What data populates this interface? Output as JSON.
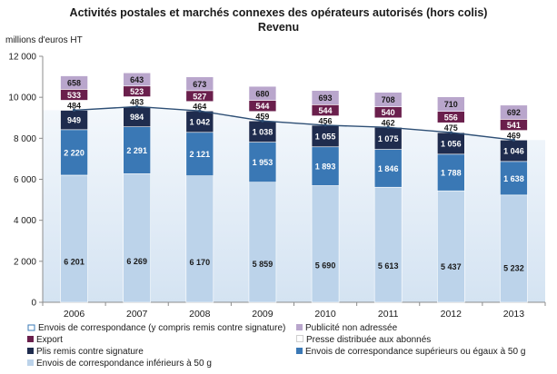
{
  "chart_data": {
    "type": "bar",
    "title": "Activités postales et marchés connexes des opérateurs autorisés (hors colis)",
    "subtitle": "Revenu",
    "ylabel": "millions d'euros HT",
    "xlabel": "",
    "ylim": [
      0,
      12000
    ],
    "y_ticks": [
      "0",
      "2 000",
      "4 000",
      "6 000",
      "8 000",
      "10 000",
      "12 000"
    ],
    "y_tick_values": [
      0,
      2000,
      4000,
      6000,
      8000,
      10000,
      12000
    ],
    "grid": false,
    "legend_position": "bottom",
    "categories": [
      "2006",
      "2007",
      "2008",
      "2009",
      "2010",
      "2011",
      "2012",
      "2013"
    ],
    "series": [
      {
        "name": "Envois de correspondance inférieurs à 50 g",
        "color": "#bcd3ea",
        "values": [
          6201,
          6269,
          6170,
          5859,
          5690,
          5613,
          5437,
          5232
        ],
        "labels": [
          "6 201",
          "6 269",
          "6 170",
          "5 859",
          "5 690",
          "5 613",
          "5 437",
          "5 232"
        ]
      },
      {
        "name": "Envois de correspondance supérieurs ou égaux à 50 g",
        "color": "#3a78b5",
        "values": [
          2220,
          2291,
          2121,
          1953,
          1893,
          1846,
          1788,
          1638
        ],
        "labels": [
          "2 220",
          "2 291",
          "2 121",
          "1 953",
          "1 893",
          "1 846",
          "1 788",
          "1 638"
        ]
      },
      {
        "name": "Plis remis contre signature",
        "color": "#1f2c4e",
        "values": [
          949,
          984,
          1042,
          1038,
          1055,
          1075,
          1056,
          1046
        ],
        "labels": [
          "949",
          "984",
          "1 042",
          "1 038",
          "1 055",
          "1 075",
          "1 056",
          "1 046"
        ]
      },
      {
        "name": "Presse distribuée aux abonnés",
        "color": "#ffffff",
        "values": [
          484,
          483,
          464,
          459,
          456,
          462,
          475,
          469
        ],
        "labels": [
          "484",
          "483",
          "464",
          "459",
          "456",
          "462",
          "475",
          "469"
        ]
      },
      {
        "name": "Export",
        "color": "#6a1f4c",
        "values": [
          533,
          523,
          527,
          544,
          544,
          540,
          556,
          541
        ],
        "labels": [
          "533",
          "523",
          "527",
          "544",
          "544",
          "540",
          "556",
          "541"
        ]
      },
      {
        "name": "Publicité non adressée",
        "color": "#b9a6cc",
        "values": [
          658,
          643,
          673,
          680,
          693,
          708,
          710,
          692
        ],
        "labels": [
          "658",
          "643",
          "673",
          "680",
          "693",
          "708",
          "710",
          "692"
        ]
      }
    ],
    "line_series": {
      "name": "Envois de correspondance (y compris remis contre signature)",
      "values": [
        9370,
        9544,
        9333,
        8850,
        8638,
        8534,
        8281,
        7916
      ]
    }
  },
  "legend": [
    {
      "label": "Envois de correspondance (y compris remis contre signature)",
      "icon": "line-with-marker",
      "color": "#3a78b5"
    },
    {
      "label": "Publicité non adressée",
      "icon": "square",
      "color": "#b9a6cc"
    },
    {
      "label": "Export",
      "icon": "square",
      "color": "#6a1f4c"
    },
    {
      "label": "Presse distribuée aux abonnés",
      "icon": "square",
      "color": "#ffffff"
    },
    {
      "label": "Plis remis contre signature",
      "icon": "square",
      "color": "#1f2c4e"
    },
    {
      "label": "Envois de correspondance supérieurs ou égaux à 50 g",
      "icon": "square",
      "color": "#3a78b5"
    },
    {
      "label": "Envois de correspondance inférieurs à 50 g",
      "icon": "square",
      "color": "#bcd3ea"
    }
  ]
}
